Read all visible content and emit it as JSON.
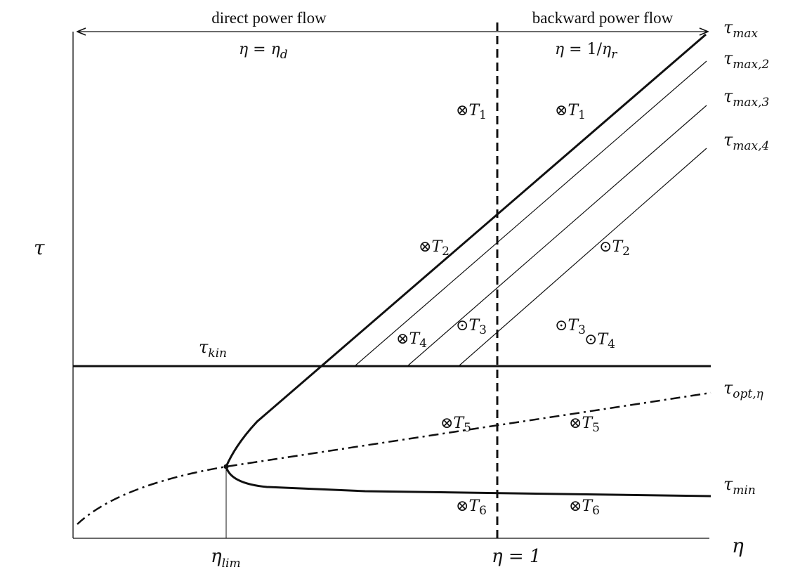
{
  "figure": {
    "direct_flow_label": "direct power flow",
    "backward_flow_label": "backward power flow",
    "eta_direct": {
      "lhs": "η",
      "eq": " = ",
      "var": "η",
      "sub": "d"
    },
    "eta_reverse": {
      "lhs": "η",
      "eq": " = 1/",
      "var": "η",
      "sub": "r"
    },
    "axis_y": {
      "symbol": "τ"
    },
    "axis_x": {
      "symbol": "η"
    },
    "eta_lim": {
      "var": "η",
      "sub": "lim"
    },
    "eta_one": {
      "text": "η = 1"
    },
    "curves": {
      "tau_max": {
        "var": "τ",
        "sub": "max"
      },
      "tau_max_2": {
        "var": "τ",
        "sub": "max,2"
      },
      "tau_max_3": {
        "var": "τ",
        "sub": "max,3"
      },
      "tau_max_4": {
        "var": "τ",
        "sub": "max,4"
      },
      "tau_kin": {
        "var": "τ",
        "sub": "kin"
      },
      "tau_opt": {
        "var": "τ",
        "sub": "opt,η"
      },
      "tau_min": {
        "var": "τ",
        "sub": "min"
      }
    },
    "markers": {
      "left_T1": {
        "symbol": "⊗",
        "var": "T",
        "sub": "1"
      },
      "right_T1": {
        "symbol": "⊗",
        "var": "T",
        "sub": "1"
      },
      "left_T2": {
        "symbol": "⊗",
        "var": "T",
        "sub": "2"
      },
      "right_T2": {
        "symbol": "⊙",
        "var": "T",
        "sub": "2"
      },
      "left_T4": {
        "symbol": "⊗",
        "var": "T",
        "sub": "4"
      },
      "left_T3": {
        "symbol": "⊙",
        "var": "T",
        "sub": "3"
      },
      "right_T3": {
        "symbol": "⊙",
        "var": "T",
        "sub": "3"
      },
      "right_T4": {
        "symbol": "⊙",
        "var": "T",
        "sub": "4"
      },
      "left_T5": {
        "symbol": "⊗",
        "var": "T",
        "sub": "5"
      },
      "right_T5": {
        "symbol": "⊗",
        "var": "T",
        "sub": "5"
      },
      "left_T6": {
        "symbol": "⊗",
        "var": "T",
        "sub": "6"
      },
      "right_T6": {
        "symbol": "⊗",
        "var": "T",
        "sub": "6"
      }
    }
  }
}
